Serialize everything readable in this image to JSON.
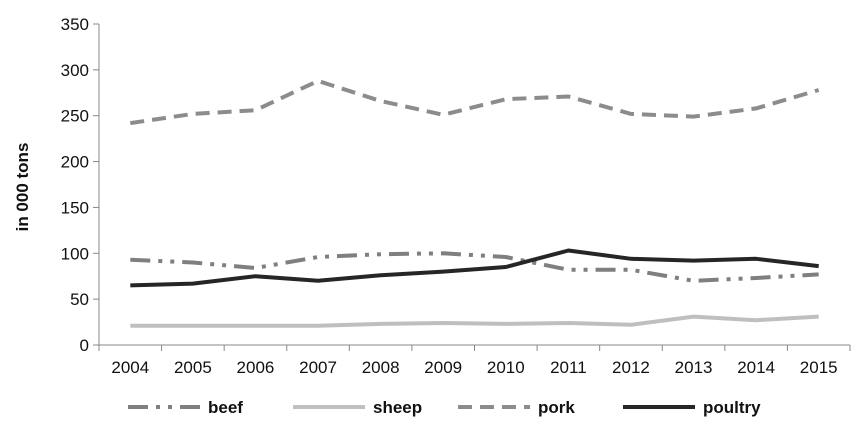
{
  "chart_data": {
    "type": "line",
    "title": "",
    "xlabel": "",
    "ylabel": "in 000 tons",
    "categories": [
      "2004",
      "2005",
      "2006",
      "2007",
      "2008",
      "2009",
      "2010",
      "2011",
      "2012",
      "2013",
      "2014",
      "2015"
    ],
    "ylim": [
      0,
      350
    ],
    "yticks": [
      0,
      50,
      100,
      150,
      200,
      250,
      300,
      350
    ],
    "grid": false,
    "legend_position": "bottom",
    "series": [
      {
        "name": "beef",
        "color": "#7f7f7f",
        "dash": "dash-dot-dot",
        "values": [
          93,
          90,
          84,
          96,
          99,
          100,
          96,
          82,
          82,
          70,
          73,
          77
        ]
      },
      {
        "name": "sheep",
        "color": "#bfbfbf",
        "dash": "solid",
        "values": [
          21,
          21,
          21,
          21,
          23,
          24,
          23,
          24,
          22,
          31,
          27,
          31
        ]
      },
      {
        "name": "pork",
        "color": "#8c8c8c",
        "dash": "dashed",
        "values": [
          242,
          252,
          256,
          288,
          266,
          251,
          268,
          271,
          252,
          249,
          258,
          278
        ]
      },
      {
        "name": "poultry",
        "color": "#262626",
        "dash": "solid",
        "values": [
          65,
          67,
          75,
          70,
          76,
          80,
          85,
          103,
          94,
          92,
          94,
          86
        ]
      }
    ]
  }
}
